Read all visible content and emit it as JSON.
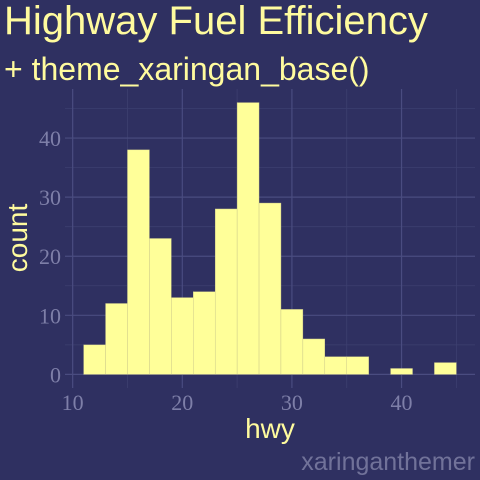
{
  "chart_data": {
    "type": "histogram",
    "title": "Highway Fuel Efficiency",
    "subtitle": "+ theme_xaringan_base()",
    "x_label": "hwy",
    "y_label": "count",
    "caption": "xaringanthemer",
    "bins": [
      11,
      13,
      15,
      17,
      19,
      21,
      23,
      25,
      27,
      29,
      31,
      33,
      35,
      37,
      39,
      41,
      43,
      45
    ],
    "values": [
      5,
      12,
      38,
      23,
      13,
      14,
      28,
      46,
      29,
      11,
      6,
      3,
      3,
      0,
      1,
      0,
      2
    ],
    "color": "#ffff99",
    "xlim": [
      9.3,
      46.7
    ],
    "ylim": [
      -2.3,
      48.3
    ],
    "xticks": [
      10,
      20,
      30,
      40
    ],
    "yticks": [
      0,
      10,
      20,
      30,
      40
    ],
    "minor_xticks": [
      15,
      25,
      35,
      45
    ],
    "minor_yticks": [
      5,
      15,
      25,
      35,
      45
    ],
    "grid": true
  }
}
